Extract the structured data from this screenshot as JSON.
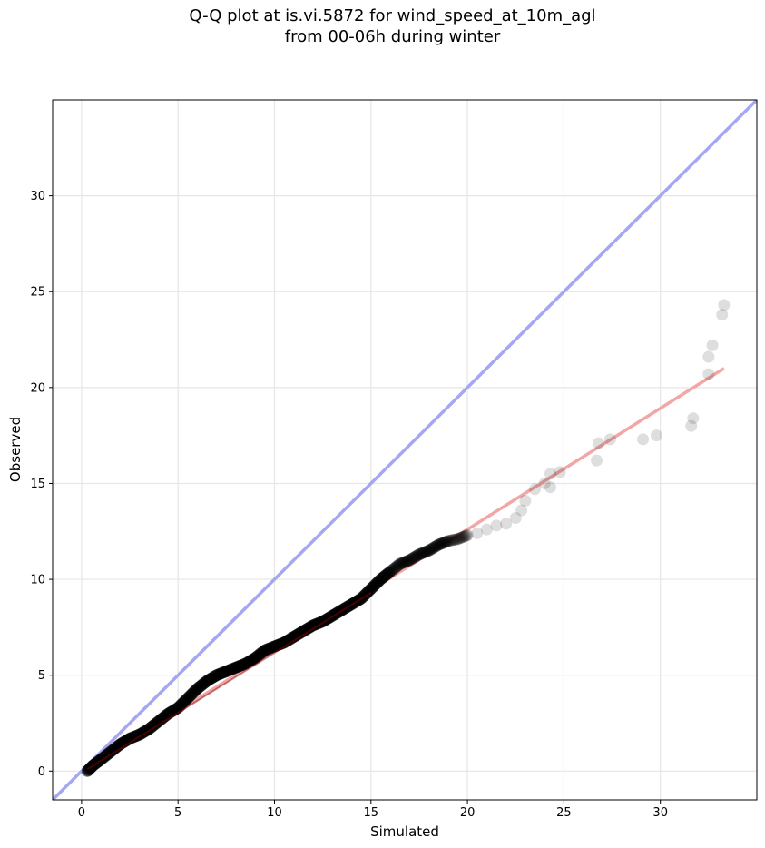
{
  "chart_data": {
    "type": "scatter",
    "title_line1": "Q-Q plot at is.vi.5872 for wind_speed_at_10m_agl",
    "title_line2": "from 00-06h during winter",
    "xlabel": "Simulated",
    "ylabel": "Observed",
    "xlim": [
      -1.5,
      35.0
    ],
    "ylim": [
      -1.5,
      35.0
    ],
    "xticks": [
      0,
      5,
      10,
      15,
      20,
      25,
      30
    ],
    "yticks": [
      0,
      5,
      10,
      15,
      20,
      25,
      30
    ],
    "grid": true,
    "colors": {
      "identity_line": "#a6a6f2",
      "fit_line": "#f2a6a6",
      "points": "#000000",
      "grid": "#e6e6e6"
    },
    "identity_line": {
      "x": [
        -1.5,
        35.0
      ],
      "y": [
        -1.5,
        35.0
      ]
    },
    "fit_line": {
      "x": [
        0.2,
        33.3
      ],
      "y": [
        0.1,
        21.0
      ]
    },
    "points_curve": [
      [
        0.3,
        0.0
      ],
      [
        0.6,
        0.3
      ],
      [
        1.0,
        0.6
      ],
      [
        1.5,
        1.0
      ],
      [
        2.0,
        1.4
      ],
      [
        2.5,
        1.7
      ],
      [
        3.0,
        1.9
      ],
      [
        3.5,
        2.2
      ],
      [
        4.0,
        2.6
      ],
      [
        4.5,
        3.0
      ],
      [
        5.0,
        3.3
      ],
      [
        5.5,
        3.8
      ],
      [
        6.0,
        4.3
      ],
      [
        6.5,
        4.7
      ],
      [
        7.0,
        5.0
      ],
      [
        7.5,
        5.2
      ],
      [
        8.0,
        5.4
      ],
      [
        8.5,
        5.6
      ],
      [
        9.0,
        5.9
      ],
      [
        9.5,
        6.3
      ],
      [
        10.0,
        6.5
      ],
      [
        10.5,
        6.7
      ],
      [
        11.0,
        7.0
      ],
      [
        11.5,
        7.3
      ],
      [
        12.0,
        7.6
      ],
      [
        12.5,
        7.8
      ],
      [
        13.0,
        8.1
      ],
      [
        13.5,
        8.4
      ],
      [
        14.0,
        8.7
      ],
      [
        14.5,
        9.0
      ],
      [
        15.0,
        9.5
      ],
      [
        15.5,
        10.0
      ],
      [
        16.0,
        10.4
      ],
      [
        16.5,
        10.8
      ],
      [
        17.0,
        11.0
      ],
      [
        17.5,
        11.3
      ],
      [
        18.0,
        11.5
      ],
      [
        18.5,
        11.8
      ],
      [
        19.0,
        12.0
      ],
      [
        19.5,
        12.1
      ],
      [
        20.0,
        12.3
      ]
    ],
    "points_tail": [
      [
        20.5,
        12.4
      ],
      [
        21.0,
        12.6
      ],
      [
        21.5,
        12.8
      ],
      [
        22.0,
        12.9
      ],
      [
        22.5,
        13.2
      ],
      [
        22.8,
        13.6
      ],
      [
        23.0,
        14.1
      ],
      [
        23.5,
        14.7
      ],
      [
        24.0,
        15.0
      ],
      [
        24.3,
        14.8
      ],
      [
        24.3,
        15.5
      ],
      [
        24.8,
        15.6
      ],
      [
        26.7,
        16.2
      ],
      [
        26.8,
        17.1
      ],
      [
        27.4,
        17.3
      ],
      [
        29.1,
        17.3
      ],
      [
        29.8,
        17.5
      ],
      [
        31.6,
        18.0
      ],
      [
        31.7,
        18.4
      ],
      [
        32.5,
        20.7
      ],
      [
        32.5,
        21.6
      ],
      [
        32.7,
        22.2
      ],
      [
        33.2,
        23.8
      ],
      [
        33.3,
        24.3
      ]
    ]
  }
}
